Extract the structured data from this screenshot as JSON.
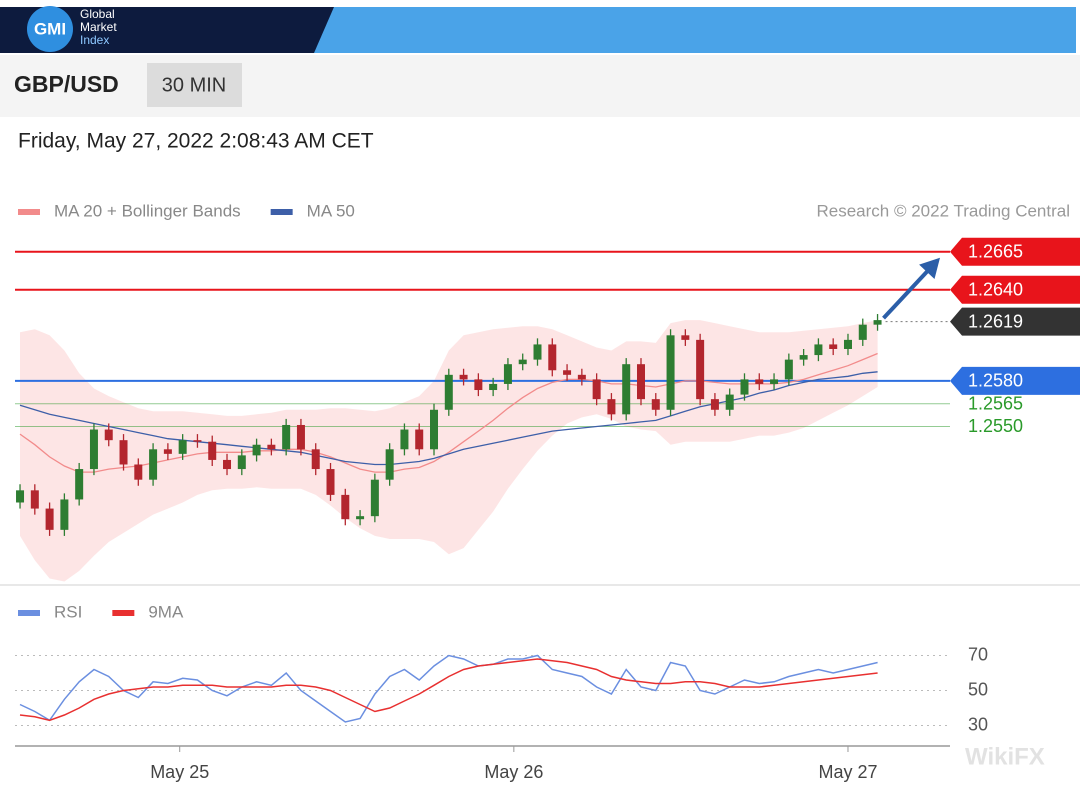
{
  "header": {
    "logo": "GMI",
    "brand": [
      "Global",
      "Market",
      "Index"
    ]
  },
  "symbol": "GBP/USD",
  "timeframe": "30 MIN",
  "timestamp": "Friday, May 27, 2022 2:08:43 AM CET",
  "watermark": "WikiFX",
  "chart_data": [
    {
      "type": "candlestick",
      "credit": "Research © 2022 Trading Central",
      "up_color": "#2e7d32",
      "down_color": "#b3262e",
      "xlim": [
        -0.34,
        62.9
      ],
      "ylim": [
        1.2449,
        1.2676
      ],
      "candles": [
        [
          1.25,
          1.2512,
          1.2496,
          1.2508
        ],
        [
          1.2508,
          1.2512,
          1.2492,
          1.2496
        ],
        [
          1.2496,
          1.25,
          1.2478,
          1.2482
        ],
        [
          1.2482,
          1.2506,
          1.2478,
          1.2502
        ],
        [
          1.2502,
          1.2526,
          1.2498,
          1.2522
        ],
        [
          1.2522,
          1.2552,
          1.2518,
          1.2548
        ],
        [
          1.2548,
          1.2552,
          1.2537,
          1.2541
        ],
        [
          1.2541,
          1.2545,
          1.2521,
          1.2525
        ],
        [
          1.2525,
          1.2529,
          1.2511,
          1.2515
        ],
        [
          1.2515,
          1.2539,
          1.2511,
          1.2535
        ],
        [
          1.2535,
          1.2539,
          1.2528,
          1.2532
        ],
        [
          1.2532,
          1.2545,
          1.2528,
          1.2541
        ],
        [
          1.2541,
          1.2545,
          1.2536,
          1.254
        ],
        [
          1.254,
          1.2544,
          1.2524,
          1.2528
        ],
        [
          1.2528,
          1.2532,
          1.2518,
          1.2522
        ],
        [
          1.2522,
          1.2535,
          1.2518,
          1.2531
        ],
        [
          1.2531,
          1.2542,
          1.2527,
          1.2538
        ],
        [
          1.2538,
          1.2542,
          1.2531,
          1.2535
        ],
        [
          1.2535,
          1.2555,
          1.2531,
          1.2551
        ],
        [
          1.2551,
          1.2555,
          1.2531,
          1.2535
        ],
        [
          1.2535,
          1.2539,
          1.2518,
          1.2522
        ],
        [
          1.2522,
          1.2526,
          1.2501,
          1.2505
        ],
        [
          1.2505,
          1.2509,
          1.2485,
          1.2489
        ],
        [
          1.2489,
          1.2495,
          1.2485,
          1.2491
        ],
        [
          1.2491,
          1.2519,
          1.2487,
          1.2515
        ],
        [
          1.2515,
          1.2539,
          1.2511,
          1.2535
        ],
        [
          1.2535,
          1.2552,
          1.2531,
          1.2548
        ],
        [
          1.2548,
          1.2552,
          1.2531,
          1.2535
        ],
        [
          1.2535,
          1.2565,
          1.2531,
          1.2561
        ],
        [
          1.2561,
          1.2588,
          1.2557,
          1.2584
        ],
        [
          1.2584,
          1.2588,
          1.2577,
          1.2581
        ],
        [
          1.2581,
          1.2585,
          1.257,
          1.2574
        ],
        [
          1.2574,
          1.2582,
          1.257,
          1.2578
        ],
        [
          1.2578,
          1.2595,
          1.2574,
          1.2591
        ],
        [
          1.2591,
          1.2598,
          1.2587,
          1.2594
        ],
        [
          1.2594,
          1.2608,
          1.259,
          1.2604
        ],
        [
          1.2604,
          1.2608,
          1.2583,
          1.2587
        ],
        [
          1.2587,
          1.2591,
          1.258,
          1.2584
        ],
        [
          1.2584,
          1.2588,
          1.2577,
          1.2581
        ],
        [
          1.2581,
          1.2585,
          1.2564,
          1.2568
        ],
        [
          1.2568,
          1.2572,
          1.2554,
          1.2558
        ],
        [
          1.2558,
          1.2595,
          1.2554,
          1.2591
        ],
        [
          1.2591,
          1.2595,
          1.2564,
          1.2568
        ],
        [
          1.2568,
          1.2572,
          1.2557,
          1.2561
        ],
        [
          1.2561,
          1.2614,
          1.2557,
          1.261
        ],
        [
          1.261,
          1.2614,
          1.2603,
          1.2607
        ],
        [
          1.2607,
          1.2611,
          1.2564,
          1.2568
        ],
        [
          1.2568,
          1.2572,
          1.2557,
          1.2561
        ],
        [
          1.2561,
          1.2575,
          1.2557,
          1.2571
        ],
        [
          1.2571,
          1.2585,
          1.2567,
          1.2581
        ],
        [
          1.2581,
          1.2585,
          1.2574,
          1.2578
        ],
        [
          1.2578,
          1.2585,
          1.2574,
          1.2581
        ],
        [
          1.2581,
          1.2598,
          1.2577,
          1.2594
        ],
        [
          1.2594,
          1.2601,
          1.259,
          1.2597
        ],
        [
          1.2597,
          1.2608,
          1.2593,
          1.2604
        ],
        [
          1.2604,
          1.2608,
          1.2597,
          1.2601
        ],
        [
          1.2601,
          1.2611,
          1.2597,
          1.2607
        ],
        [
          1.2607,
          1.2621,
          1.2603,
          1.2617
        ],
        [
          1.2617,
          1.2624,
          1.2613,
          1.262
        ]
      ],
      "series": [
        {
          "name": "MA 20 + Bollinger Bands",
          "color": "#f28b8b",
          "values": [
            1.2545,
            1.2538,
            1.253,
            1.2524,
            1.252,
            1.252,
            1.2522,
            1.2523,
            1.2524,
            1.2526,
            1.2528,
            1.253,
            1.2532,
            1.2533,
            1.2533,
            1.2533,
            1.2534,
            1.2534,
            1.2535,
            1.2535,
            1.2533,
            1.253,
            1.2526,
            1.2522,
            1.252,
            1.252,
            1.2522,
            1.2523,
            1.2527,
            1.2533,
            1.254,
            1.2547,
            1.2554,
            1.2562,
            1.2569,
            1.2575,
            1.2579,
            1.2581,
            1.2581,
            1.258,
            1.2578,
            1.2578,
            1.2577,
            1.2576,
            1.2578,
            1.258,
            1.258,
            1.2579,
            1.2578,
            1.2578,
            1.2578,
            1.2578,
            1.2579,
            1.2581,
            1.2584,
            1.2587,
            1.259,
            1.2594,
            1.2598
          ],
          "upper": [
            1.2612,
            1.2614,
            1.261,
            1.26,
            1.2585,
            1.2575,
            1.257,
            1.2566,
            1.2562,
            1.256,
            1.256,
            1.256,
            1.2559,
            1.2558,
            1.2557,
            1.2557,
            1.2558,
            1.2559,
            1.2561,
            1.2561,
            1.2561,
            1.2562,
            1.2562,
            1.2561,
            1.256,
            1.2562,
            1.2566,
            1.257,
            1.258,
            1.26,
            1.261,
            1.2612,
            1.2614,
            1.2615,
            1.2616,
            1.2616,
            1.2614,
            1.261,
            1.2606,
            1.2602,
            1.26,
            1.2606,
            1.2606,
            1.2605,
            1.2618,
            1.262,
            1.262,
            1.2618,
            1.2616,
            1.2614,
            1.2612,
            1.2612,
            1.2612,
            1.2613,
            1.2614,
            1.2615,
            1.2616,
            1.2618,
            1.262
          ],
          "lower": [
            1.2478,
            1.2462,
            1.245,
            1.2448,
            1.2455,
            1.2465,
            1.2474,
            1.248,
            1.2486,
            1.2492,
            1.2496,
            1.25,
            1.2505,
            1.2508,
            1.2509,
            1.2509,
            1.251,
            1.2509,
            1.2509,
            1.2509,
            1.2505,
            1.2498,
            1.249,
            1.2483,
            1.2478,
            1.2476,
            1.2476,
            1.2476,
            1.2474,
            1.2466,
            1.247,
            1.2482,
            1.2494,
            1.2509,
            1.2522,
            1.2534,
            1.2544,
            1.2552,
            1.2556,
            1.2558,
            1.2555,
            1.255,
            1.2548,
            1.2547,
            1.2538,
            1.254,
            1.254,
            1.254,
            1.254,
            1.2542,
            1.2544,
            1.2544,
            1.2546,
            1.2549,
            1.2554,
            1.2559,
            1.2564,
            1.257,
            1.2576
          ]
        },
        {
          "name": "MA 50",
          "color": "#3d5fa8",
          "values": [
            1.2564,
            1.2561,
            1.2558,
            1.2556,
            1.2554,
            1.2552,
            1.255,
            1.2548,
            1.2546,
            1.2544,
            1.2542,
            1.2541,
            1.254,
            1.2539,
            1.2538,
            1.2537,
            1.2536,
            1.2535,
            1.2534,
            1.2533,
            1.2531,
            1.2529,
            1.2527,
            1.2526,
            1.2525,
            1.2525,
            1.2526,
            1.2527,
            1.2529,
            1.2532,
            1.2535,
            1.2537,
            1.2539,
            1.2541,
            1.2543,
            1.2545,
            1.2547,
            1.2548,
            1.2549,
            1.255,
            1.2551,
            1.2552,
            1.2553,
            1.2554,
            1.2557,
            1.256,
            1.2563,
            1.2565,
            1.2567,
            1.2569,
            1.2572,
            1.2574,
            1.2577,
            1.2579,
            1.2581,
            1.2582,
            1.2583,
            1.2585,
            1.2586
          ]
        }
      ],
      "levels": [
        {
          "value": 1.2665,
          "color": "#e8141b",
          "style": "box",
          "line": "solid"
        },
        {
          "value": 1.264,
          "label": "1.2640",
          "color": "#e8141b",
          "style": "box",
          "line": "solid"
        },
        {
          "value": 1.2619,
          "color": "#333333",
          "style": "box",
          "line": "dotted"
        },
        {
          "value": 1.258,
          "label": "1.2580",
          "color": "#2d6fe0",
          "style": "box",
          "line": "solid"
        },
        {
          "value": 1.2565,
          "color": "#2a9a2a",
          "style": "text",
          "line": "solid"
        },
        {
          "value": 1.255,
          "label": "1.2550",
          "color": "#2a9a2a",
          "style": "text",
          "line": "solid"
        }
      ]
    },
    {
      "type": "line",
      "xlim": [
        -0.34,
        62.9
      ],
      "ylim": [
        20,
        80
      ],
      "yticks": [
        70,
        50,
        30
      ],
      "xticks": [
        {
          "value": 10.8,
          "label": "May 25"
        },
        {
          "value": 33.4,
          "label": "May 26"
        },
        {
          "value": 56,
          "label": "May 27"
        }
      ],
      "series": [
        {
          "name": "RSI",
          "color": "#6b8fe0",
          "values": [
            42,
            38,
            33,
            45,
            55,
            62,
            58,
            50,
            46,
            55,
            54,
            57,
            56,
            50,
            47,
            52,
            55,
            53,
            60,
            50,
            44,
            38,
            32,
            34,
            48,
            58,
            62,
            56,
            64,
            70,
            68,
            64,
            65,
            68,
            68,
            70,
            62,
            60,
            58,
            52,
            48,
            62,
            52,
            50,
            66,
            64,
            50,
            48,
            52,
            56,
            54,
            55,
            58,
            60,
            62,
            60,
            62,
            64,
            66
          ]
        },
        {
          "name": "9MA",
          "color": "#e83030",
          "values": [
            36,
            35,
            33,
            36,
            40,
            45,
            48,
            50,
            51,
            52,
            52,
            53,
            53,
            53,
            52,
            52,
            52,
            52,
            53,
            53,
            52,
            50,
            46,
            42,
            38,
            40,
            44,
            48,
            53,
            58,
            62,
            64,
            65,
            66,
            67,
            68,
            67,
            66,
            64,
            62,
            58,
            56,
            55,
            54,
            54,
            55,
            55,
            54,
            52,
            52,
            52,
            53,
            54,
            55,
            56,
            57,
            58,
            59,
            60
          ]
        }
      ]
    }
  ]
}
